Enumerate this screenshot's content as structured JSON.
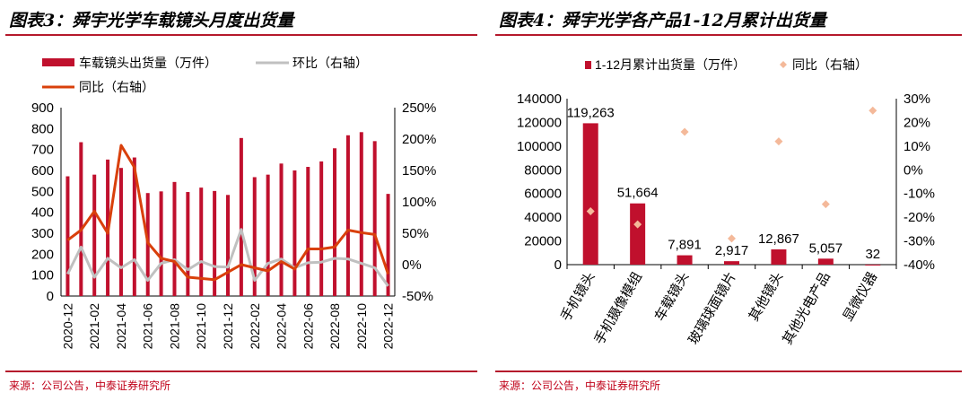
{
  "charts": [
    {
      "title": "图表3：舜宇光学车载镜头月度出货量",
      "source": "来源：公司公告，中泰证券研究所"
    },
    {
      "title": "图表4：舜宇光学各产品1-12月累计出货量",
      "source": "来源：公司公告，中泰证券研究所"
    }
  ],
  "colors": {
    "bar": "#c0102d",
    "line_yoy": "#d9400b",
    "line_mom": "#c0c0c0",
    "dot": "#f4b99a",
    "rule": "#b5192c"
  },
  "chart_data": [
    {
      "type": "bar",
      "title": "图表3：舜宇光学车载镜头月度出货量",
      "x_tick_labels": [
        "2020-12",
        "2021-02",
        "2021-04",
        "2021-06",
        "2021-08",
        "2021-10",
        "2021-12",
        "2022-02",
        "2022-04",
        "2022-06",
        "2022-08",
        "2022-10",
        "2022-12"
      ],
      "categories": [
        "2020-12",
        "2021-01",
        "2021-02",
        "2021-03",
        "2021-04",
        "2021-05",
        "2021-06",
        "2021-07",
        "2021-08",
        "2021-09",
        "2021-10",
        "2021-11",
        "2021-12",
        "2022-01",
        "2022-02",
        "2022-03",
        "2022-04",
        "2022-05",
        "2022-06",
        "2022-07",
        "2022-08",
        "2022-09",
        "2022-10",
        "2022-11",
        "2022-12"
      ],
      "series": [
        {
          "name": "车载镜头出货量（万件）",
          "axis": "left",
          "type": "bar",
          "values": [
            572,
            735,
            580,
            652,
            612,
            662,
            492,
            500,
            545,
            497,
            518,
            502,
            483,
            755,
            568,
            580,
            633,
            600,
            617,
            643,
            706,
            768,
            783,
            740,
            488
          ]
        },
        {
          "name": "环比（右轴）",
          "axis": "right",
          "type": "line",
          "values": [
            -15,
            28,
            -20,
            10,
            -5,
            8,
            -25,
            2,
            8,
            -8,
            5,
            -3,
            -4,
            56,
            -25,
            2,
            9,
            -5,
            3,
            4,
            10,
            9,
            2,
            -5,
            -34
          ]
        },
        {
          "name": "同比（右轴）",
          "axis": "right",
          "type": "line",
          "values": [
            39,
            55,
            85,
            50,
            190,
            155,
            35,
            10,
            5,
            -20,
            -22,
            -24,
            -12,
            0,
            -5,
            -10,
            5,
            -7,
            25,
            25,
            28,
            55,
            51,
            48,
            -15
          ]
        }
      ],
      "y_left": {
        "min": 0,
        "max": 900,
        "ticks": [
          0,
          100,
          200,
          300,
          400,
          500,
          600,
          700,
          800,
          900
        ]
      },
      "y_right": {
        "min": -50,
        "max": 250,
        "ticks": [
          "-50%",
          "0%",
          "50%",
          "100%",
          "150%",
          "200%",
          "250%"
        ]
      },
      "legend_position": "top"
    },
    {
      "type": "bar",
      "title": "图表4：舜宇光学各产品1-12月累计出货量",
      "categories": [
        "手机镜头",
        "手机摄像模组",
        "车载镜头",
        "玻璃球面镜片",
        "其他镜头",
        "其他光电产品",
        "显微仪器"
      ],
      "series": [
        {
          "name": "1-12月累计出货量（万件）",
          "axis": "left",
          "type": "bar",
          "values": [
            119263,
            51664,
            7891,
            2917,
            12867,
            5057,
            32
          ],
          "labels": [
            "119,263",
            "51,664",
            "7,891",
            "2,917",
            "12,867",
            "5,057",
            "32"
          ]
        },
        {
          "name": "同比（右轴）",
          "axis": "right",
          "type": "scatter",
          "values": [
            -17.5,
            -23,
            16,
            -29,
            12,
            -14.5,
            25
          ]
        }
      ],
      "y_left": {
        "min": 0,
        "max": 140000,
        "ticks": [
          0,
          20000,
          40000,
          60000,
          80000,
          100000,
          120000,
          140000
        ]
      },
      "y_right": {
        "min": -40,
        "max": 30,
        "ticks": [
          "-40%",
          "-30%",
          "-20%",
          "-10%",
          "0%",
          "10%",
          "20%",
          "30%"
        ]
      },
      "legend_position": "top"
    }
  ]
}
